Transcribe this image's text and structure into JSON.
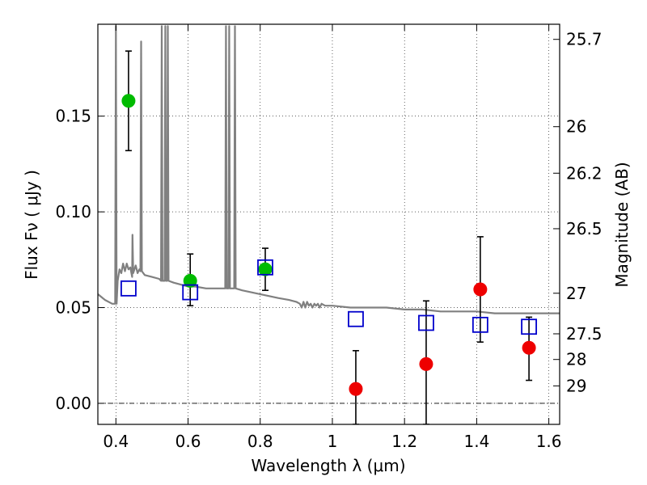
{
  "chart_data": {
    "type": "scatter",
    "title": "",
    "xlabel": "Wavelength  λ (μm)",
    "ylabel": "Flux  Fν  ( μJy )",
    "y2label": "Magnitude (AB)",
    "xlim": [
      0.35,
      1.63
    ],
    "ylim": [
      -0.011,
      0.198
    ],
    "xticks": [
      0.4,
      0.6,
      0.8,
      1.0,
      1.2,
      1.4,
      1.6
    ],
    "xtick_labels": [
      "0.4",
      "0.6",
      "0.8",
      "1",
      "1.2",
      "1.4",
      "1.6"
    ],
    "yticks": [
      0.0,
      0.05,
      0.1,
      0.15
    ],
    "ytick_labels": [
      "0.00",
      "0.05",
      "0.10",
      "0.15"
    ],
    "y2ticks": [
      {
        "label": "25.7",
        "flux": 0.1901
      },
      {
        "label": "26",
        "flux": 0.1445
      },
      {
        "label": "26.2",
        "flux": 0.1202
      },
      {
        "label": "26.5",
        "flux": 0.0912
      },
      {
        "label": "27",
        "flux": 0.0575
      },
      {
        "label": "27.5",
        "flux": 0.0363
      },
      {
        "label": "28",
        "flux": 0.0229
      },
      {
        "label": "29",
        "flux": 0.0091
      }
    ],
    "grid": true,
    "zero_line": true,
    "series": [
      {
        "marker": "circle",
        "color": "#00bb00",
        "points": [
          {
            "x": 0.435,
            "y": 0.158,
            "err_lo": 0.132,
            "err_hi": 0.184
          },
          {
            "x": 0.606,
            "y": 0.064,
            "err_lo": 0.051,
            "err_hi": 0.078
          },
          {
            "x": 0.814,
            "y": 0.07,
            "err_lo": 0.059,
            "err_hi": 0.081
          }
        ]
      },
      {
        "marker": "circle",
        "color": "#ee0000",
        "points": [
          {
            "x": 1.065,
            "y": 0.0075,
            "err_lo": -0.011,
            "err_hi": 0.0275
          },
          {
            "x": 1.26,
            "y": 0.0205,
            "err_lo": -0.011,
            "err_hi": 0.0535
          },
          {
            "x": 1.41,
            "y": 0.0595,
            "err_lo": 0.032,
            "err_hi": 0.087
          },
          {
            "x": 1.545,
            "y": 0.029,
            "err_lo": 0.012,
            "err_hi": 0.045
          }
        ]
      },
      {
        "marker": "square-open",
        "color": "#0000cc",
        "points": [
          {
            "x": 0.435,
            "y": 0.06
          },
          {
            "x": 0.606,
            "y": 0.058
          },
          {
            "x": 0.814,
            "y": 0.071
          },
          {
            "x": 1.065,
            "y": 0.044
          },
          {
            "x": 1.26,
            "y": 0.042
          },
          {
            "x": 1.41,
            "y": 0.041
          },
          {
            "x": 1.545,
            "y": 0.04
          }
        ]
      }
    ],
    "model_spectrum": {
      "color": "#808080",
      "points": [
        [
          0.35,
          0.057
        ],
        [
          0.37,
          0.054
        ],
        [
          0.39,
          0.052
        ],
        [
          0.398,
          0.052
        ],
        [
          0.4,
          0.197
        ],
        [
          0.402,
          0.052
        ],
        [
          0.405,
          0.064
        ],
        [
          0.41,
          0.07
        ],
        [
          0.415,
          0.068
        ],
        [
          0.42,
          0.073
        ],
        [
          0.425,
          0.069
        ],
        [
          0.43,
          0.073
        ],
        [
          0.435,
          0.07
        ],
        [
          0.44,
          0.071
        ],
        [
          0.445,
          0.066
        ],
        [
          0.446,
          0.088
        ],
        [
          0.448,
          0.068
        ],
        [
          0.455,
          0.072
        ],
        [
          0.46,
          0.068
        ],
        [
          0.465,
          0.07
        ],
        [
          0.468,
          0.069
        ],
        [
          0.47,
          0.189
        ],
        [
          0.472,
          0.069
        ],
        [
          0.48,
          0.067
        ],
        [
          0.5,
          0.066
        ],
        [
          0.52,
          0.065
        ],
        [
          0.525,
          0.064
        ],
        [
          0.527,
          0.197
        ],
        [
          0.529,
          0.064
        ],
        [
          0.535,
          0.064
        ],
        [
          0.537,
          0.197
        ],
        [
          0.539,
          0.064
        ],
        [
          0.542,
          0.064
        ],
        [
          0.544,
          0.197
        ],
        [
          0.546,
          0.064
        ],
        [
          0.56,
          0.063
        ],
        [
          0.58,
          0.062
        ],
        [
          0.6,
          0.061
        ],
        [
          0.62,
          0.061
        ],
        [
          0.65,
          0.06
        ],
        [
          0.68,
          0.06
        ],
        [
          0.7,
          0.06
        ],
        [
          0.703,
          0.06
        ],
        [
          0.705,
          0.197
        ],
        [
          0.707,
          0.06
        ],
        [
          0.712,
          0.06
        ],
        [
          0.714,
          0.197
        ],
        [
          0.716,
          0.06
        ],
        [
          0.72,
          0.06
        ],
        [
          0.728,
          0.06
        ],
        [
          0.73,
          0.197
        ],
        [
          0.732,
          0.06
        ],
        [
          0.75,
          0.059
        ],
        [
          0.8,
          0.057
        ],
        [
          0.85,
          0.055
        ],
        [
          0.88,
          0.054
        ],
        [
          0.9,
          0.053
        ],
        [
          0.91,
          0.052
        ],
        [
          0.915,
          0.05
        ],
        [
          0.92,
          0.053
        ],
        [
          0.925,
          0.05
        ],
        [
          0.93,
          0.053
        ],
        [
          0.935,
          0.051
        ],
        [
          0.94,
          0.052
        ],
        [
          0.945,
          0.05
        ],
        [
          0.95,
          0.052
        ],
        [
          0.955,
          0.051
        ],
        [
          0.96,
          0.052
        ],
        [
          0.965,
          0.05
        ],
        [
          0.97,
          0.052
        ],
        [
          0.98,
          0.051
        ],
        [
          1.0,
          0.051
        ],
        [
          1.05,
          0.05
        ],
        [
          1.1,
          0.05
        ],
        [
          1.15,
          0.05
        ],
        [
          1.2,
          0.049
        ],
        [
          1.25,
          0.049
        ],
        [
          1.3,
          0.048
        ],
        [
          1.35,
          0.048
        ],
        [
          1.4,
          0.048
        ],
        [
          1.45,
          0.047
        ],
        [
          1.5,
          0.047
        ],
        [
          1.55,
          0.047
        ],
        [
          1.63,
          0.047
        ]
      ]
    }
  }
}
